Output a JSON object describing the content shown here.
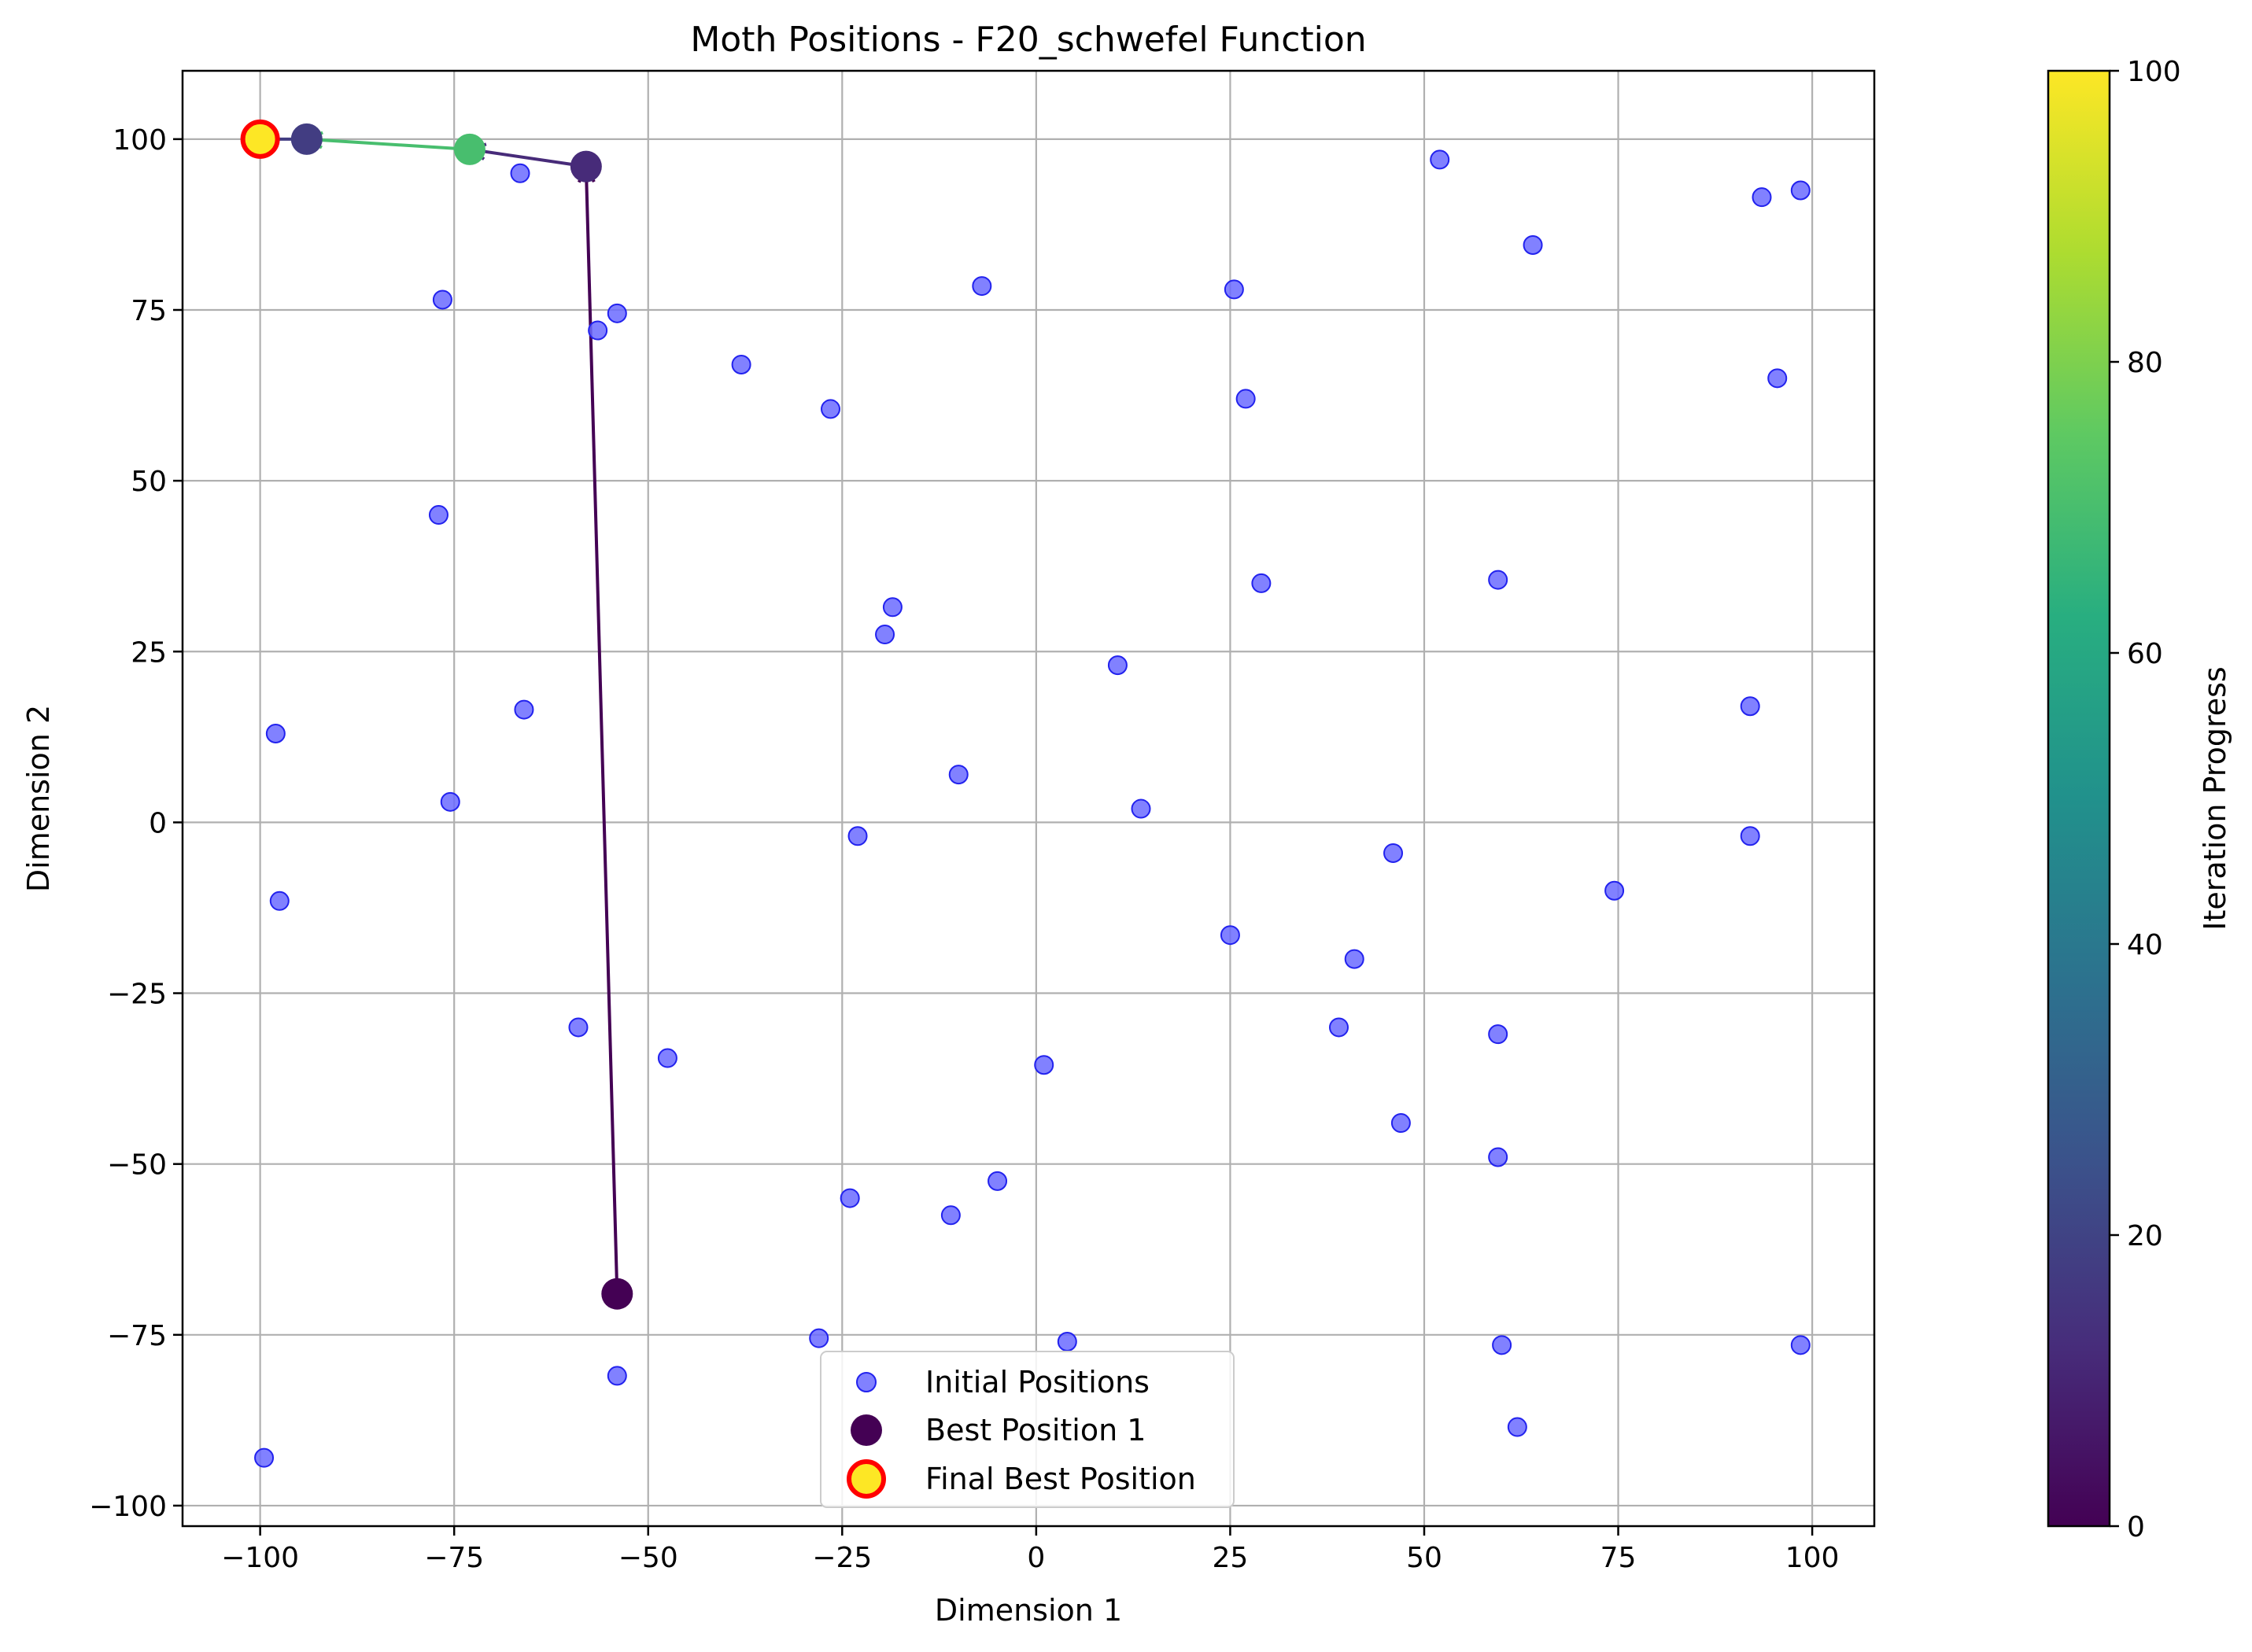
{
  "chart_data": {
    "type": "scatter",
    "title": "Moth Positions - F20_schwefel Function",
    "xlabel": "Dimension 1",
    "ylabel": "Dimension 2",
    "xlim": [
      -110,
      108
    ],
    "ylim": [
      -103,
      110
    ],
    "xticks": [
      -100,
      -75,
      -50,
      -25,
      0,
      25,
      50,
      75,
      100
    ],
    "yticks": [
      -100,
      -75,
      -50,
      -25,
      0,
      25,
      50,
      75,
      100
    ],
    "grid": true,
    "legend_position": "lower center",
    "colorbar": {
      "label": "Iteration Progress",
      "colormap": "viridis",
      "range": [
        0,
        100
      ],
      "ticks": [
        0,
        20,
        40,
        60,
        80,
        100
      ]
    },
    "colors": {
      "initial_fill": "#6b6bff",
      "initial_edge": "#2222ee",
      "final_marker_fill": "#fde725",
      "final_marker_edge": "#ff0000"
    },
    "series": [
      {
        "name": "Initial Positions",
        "marker": "circle",
        "points": [
          [
            -99.5,
            -93
          ],
          [
            -98,
            13
          ],
          [
            -97.5,
            -11.5
          ],
          [
            -77,
            45
          ],
          [
            -76.5,
            76.5
          ],
          [
            -75.5,
            3
          ],
          [
            -66.5,
            95
          ],
          [
            -66,
            16.5
          ],
          [
            -59,
            -30
          ],
          [
            -56.5,
            72
          ],
          [
            -54,
            74.5
          ],
          [
            -54,
            -81
          ],
          [
            -47.5,
            -34.5
          ],
          [
            -38,
            67
          ],
          [
            -28,
            -75.5
          ],
          [
            -26.5,
            60.5
          ],
          [
            -24,
            -55
          ],
          [
            -23,
            -2
          ],
          [
            -19.5,
            27.5
          ],
          [
            -18.5,
            31.5
          ],
          [
            -11,
            -57.5
          ],
          [
            -10,
            7
          ],
          [
            -7,
            78.5
          ],
          [
            -5,
            -52.5
          ],
          [
            1,
            -35.5
          ],
          [
            4,
            -76
          ],
          [
            10.5,
            23
          ],
          [
            13.5,
            2
          ],
          [
            25,
            -16.5
          ],
          [
            25.5,
            78
          ],
          [
            27,
            62
          ],
          [
            29,
            35
          ],
          [
            39,
            -30
          ],
          [
            41,
            -20
          ],
          [
            46,
            -4.5
          ],
          [
            47,
            -44
          ],
          [
            52,
            97
          ],
          [
            59.5,
            -31
          ],
          [
            59.5,
            -49
          ],
          [
            59.5,
            35.5
          ],
          [
            60,
            -76.5
          ],
          [
            62,
            -88.5
          ],
          [
            64,
            84.5
          ],
          [
            74.5,
            -10
          ],
          [
            92,
            17
          ],
          [
            92,
            -2
          ],
          [
            93.5,
            91.5
          ],
          [
            95.5,
            65
          ],
          [
            98.5,
            92.5
          ],
          [
            98.5,
            -76.5
          ]
        ]
      },
      {
        "name": "Best Position 1",
        "iteration": 0,
        "x": -54,
        "y": -69
      }
    ],
    "best_positions_path": [
      {
        "x": -54,
        "y": -69,
        "iteration": 0
      },
      {
        "x": -58,
        "y": 96,
        "iteration": 12
      },
      {
        "x": -73,
        "y": 98.5,
        "iteration": 70
      },
      {
        "x": -94,
        "y": 100,
        "iteration": 18
      },
      {
        "x": -100,
        "y": 100,
        "iteration": 100
      }
    ],
    "final_best": {
      "name": "Final Best Position",
      "x": -100,
      "y": 100
    }
  }
}
